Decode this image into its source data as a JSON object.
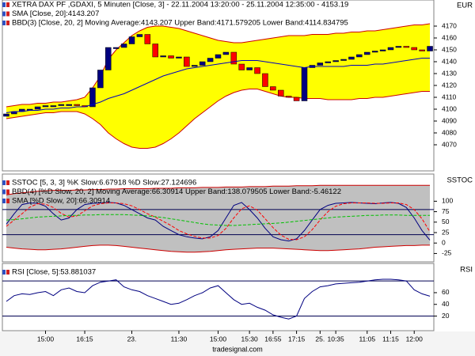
{
  "chart_data": [
    {
      "type": "candlestick",
      "title": "XETRA DAX PF    ,GDAXI, 5 Minuten [Close, 3] - 22.11.2004 13:20:00 - 25.11.2004 12:35:00 - 4153.19",
      "unit": "EUR",
      "up_color": "#000080",
      "down_color": "#ff0000",
      "open": [
        4094,
        4096,
        4098,
        4100,
        4100,
        4102,
        4103,
        4103,
        4104,
        4104,
        4103,
        4102,
        4118,
        4133,
        4152,
        4152,
        4155,
        4161,
        4163,
        4155,
        4144,
        4145,
        4143,
        4144,
        4136,
        4137,
        4140,
        4143,
        4146,
        4148,
        4138,
        4133,
        4135,
        4130,
        4119,
        4116,
        4111,
        4110,
        4107,
        4135,
        4137,
        4139,
        4140,
        4141,
        4142,
        4144,
        4146,
        4148,
        4149,
        4150,
        4152,
        4153,
        4152,
        4150,
        4149
      ],
      "close": [
        4096,
        4098,
        4100,
        4100,
        4102,
        4103,
        4103,
        4104,
        4104,
        4103,
        4102,
        4118,
        4133,
        4152,
        4152,
        4155,
        4161,
        4163,
        4155,
        4144,
        4145,
        4143,
        4144,
        4136,
        4137,
        4140,
        4143,
        4146,
        4148,
        4138,
        4133,
        4135,
        4130,
        4119,
        4116,
        4111,
        4110,
        4107,
        4135,
        4137,
        4139,
        4140,
        4141,
        4142,
        4144,
        4146,
        4148,
        4149,
        4150,
        4152,
        4153,
        4152,
        4150,
        4149,
        4153
      ],
      "series": [
        {
          "name": "SMA [Close, 20]:4143.207",
          "color": "#0000c0",
          "values": [
            4097,
            4098,
            4098,
            4099,
            4099,
            4100,
            4100,
            4101,
            4101,
            4102,
            4102,
            4104,
            4106,
            4109,
            4111,
            4113,
            4116,
            4119,
            4122,
            4125,
            4128,
            4130,
            4132,
            4134,
            4135,
            4136,
            4137,
            4138,
            4139,
            4140,
            4141,
            4141,
            4141,
            4140,
            4139,
            4138,
            4137,
            4136,
            4135,
            4136,
            4136,
            4136,
            4136,
            4136,
            4137,
            4137,
            4137,
            4138,
            4138,
            4139,
            4140,
            4141,
            4142,
            4143,
            4143
          ]
        },
        {
          "name": "BBD(3) [Close, 20, 2] Moving Average:4143.207 Upper Band:4171.579205 Lower Band:4114.834795",
          "kind": "band",
          "color": "#cc0000",
          "fill": "#ffff00",
          "upper": [
            4102,
            4103,
            4104,
            4104,
            4105,
            4105,
            4106,
            4106,
            4107,
            4108,
            4110,
            4118,
            4128,
            4142,
            4150,
            4156,
            4162,
            4166,
            4169,
            4170,
            4170,
            4169,
            4168,
            4166,
            4164,
            4162,
            4160,
            4158,
            4157,
            4156,
            4156,
            4157,
            4158,
            4159,
            4160,
            4161,
            4162,
            4162,
            4162,
            4163,
            4163,
            4163,
            4164,
            4164,
            4165,
            4165,
            4166,
            4166,
            4167,
            4168,
            4169,
            4170,
            4171,
            4171,
            4172
          ],
          "lower": [
            4092,
            4093,
            4094,
            4095,
            4096,
            4097,
            4097,
            4098,
            4098,
            4098,
            4096,
            4092,
            4087,
            4080,
            4075,
            4071,
            4068,
            4067,
            4067,
            4068,
            4071,
            4075,
            4080,
            4086,
            4092,
            4097,
            4102,
            4107,
            4111,
            4114,
            4116,
            4117,
            4117,
            4115,
            4113,
            4111,
            4110,
            4110,
            4109,
            4109,
            4109,
            4108,
            4108,
            4108,
            4108,
            4109,
            4109,
            4110,
            4110,
            4111,
            4112,
            4113,
            4114,
            4115,
            4115
          ]
        }
      ],
      "ylim": [
        4048,
        4192
      ],
      "yticks": [
        4070,
        4080,
        4090,
        4100,
        4110,
        4120,
        4130,
        4140,
        4150,
        4160,
        4170
      ]
    },
    {
      "type": "line",
      "title": "SSTOC [5, 3, 3] %K Slow:6.67918 %D Slow:27.124696",
      "unit": "SSTOC",
      "series": [
        {
          "color": "#000080",
          "values": [
            45,
            70,
            92,
            96,
            95,
            88,
            70,
            55,
            60,
            80,
            92,
            95,
            96,
            97,
            96,
            90,
            80,
            70,
            60,
            55,
            40,
            30,
            20,
            15,
            12,
            10,
            15,
            30,
            60,
            90,
            97,
            80,
            60,
            35,
            15,
            8,
            5,
            10,
            30,
            55,
            80,
            90,
            95,
            96,
            97,
            96,
            95,
            94,
            96,
            97,
            95,
            85,
            60,
            30,
            7
          ]
        },
        {
          "color": "#ff0000",
          "dash": true,
          "values": [
            40,
            55,
            70,
            86,
            94,
            93,
            85,
            71,
            62,
            65,
            77,
            89,
            94,
            96,
            96,
            94,
            89,
            80,
            70,
            62,
            52,
            42,
            30,
            22,
            16,
            12,
            12,
            18,
            35,
            60,
            82,
            89,
            79,
            58,
            37,
            19,
            9,
            8,
            15,
            32,
            55,
            75,
            88,
            94,
            96,
            96,
            96,
            95,
            95,
            96,
            96,
            92,
            80,
            58,
            27
          ]
        },
        {
          "name": "BBD(4) [%D Slow, 20, 2] Moving Average:66.30914 Upper Band:138.079505 Lower Band:-5.46122",
          "kind": "band",
          "color": "#cc0000",
          "fill": "#c0c0c0",
          "upper": [
            115,
            118,
            120,
            122,
            124,
            125,
            126,
            126,
            126,
            127,
            127,
            128,
            128,
            129,
            129,
            130,
            130,
            130,
            130,
            131,
            131,
            131,
            132,
            132,
            132,
            133,
            133,
            133,
            134,
            134,
            134,
            135,
            135,
            135,
            136,
            136,
            136,
            137,
            137,
            137,
            138,
            138,
            138,
            138,
            138,
            138,
            138,
            138,
            138,
            138,
            138,
            138,
            138,
            138,
            138
          ],
          "lower": [
            -10,
            -12,
            -14,
            -15,
            -16,
            -16,
            -15,
            -14,
            -12,
            -10,
            -8,
            -6,
            -5,
            -5,
            -6,
            -8,
            -10,
            -12,
            -14,
            -16,
            -18,
            -20,
            -21,
            -22,
            -22,
            -21,
            -20,
            -18,
            -16,
            -15,
            -14,
            -13,
            -12,
            -12,
            -12,
            -13,
            -14,
            -15,
            -16,
            -17,
            -18,
            -18,
            -17,
            -16,
            -15,
            -14,
            -12,
            -10,
            -9,
            -8,
            -7,
            -6,
            -6,
            -5,
            -5
          ]
        },
        {
          "name": "SMA [%D Slow, 20]:66.30914",
          "color": "#00c000",
          "dash": true,
          "values": [
            55,
            56,
            58,
            60,
            62,
            63,
            64,
            65,
            66,
            66,
            67,
            67,
            68,
            68,
            68,
            68,
            67,
            66,
            65,
            63,
            61,
            58,
            55,
            52,
            49,
            46,
            44,
            43,
            42,
            42,
            43,
            44,
            45,
            46,
            47,
            48,
            50,
            52,
            54,
            56,
            58,
            60,
            62,
            63,
            64,
            65,
            66,
            66,
            67,
            67,
            67,
            66,
            66,
            66,
            66
          ]
        }
      ],
      "hlines": [
        20,
        80
      ],
      "ylim": [
        -45,
        165
      ],
      "yticks": [
        100,
        75,
        50,
        25,
        0,
        -25
      ]
    },
    {
      "type": "line",
      "title": "RSI [Close, 5]:53.881037",
      "unit": "RSI",
      "series": [
        {
          "color": "#000080",
          "values": [
            45,
            55,
            58,
            57,
            60,
            62,
            55,
            65,
            68,
            62,
            60,
            72,
            78,
            80,
            82,
            70,
            65,
            62,
            55,
            50,
            45,
            40,
            42,
            48,
            55,
            60,
            68,
            72,
            60,
            48,
            40,
            42,
            35,
            30,
            22,
            18,
            15,
            20,
            50,
            62,
            70,
            72,
            75,
            76,
            77,
            78,
            80,
            82,
            83,
            83,
            82,
            80,
            65,
            58,
            54
          ]
        }
      ],
      "hlines": [
        20,
        80
      ],
      "ylim": [
        -5,
        110
      ],
      "yticks": [
        60,
        40,
        20
      ],
      "categories": [
        null,
        null,
        null,
        null,
        null,
        "15:00",
        null,
        null,
        null,
        null,
        "16:15",
        null,
        null,
        null,
        null,
        null,
        "23.",
        null,
        null,
        null,
        null,
        null,
        "11:30",
        null,
        null,
        null,
        null,
        "15:00",
        null,
        null,
        null,
        "15:30",
        null,
        null,
        "16:55",
        null,
        null,
        "17:15",
        null,
        null,
        "25.",
        null,
        "10:35",
        null,
        null,
        null,
        "11:05",
        null,
        null,
        "11:15",
        null,
        null,
        "12:00",
        null,
        null
      ]
    }
  ],
  "watermark": "tradesignal.com"
}
